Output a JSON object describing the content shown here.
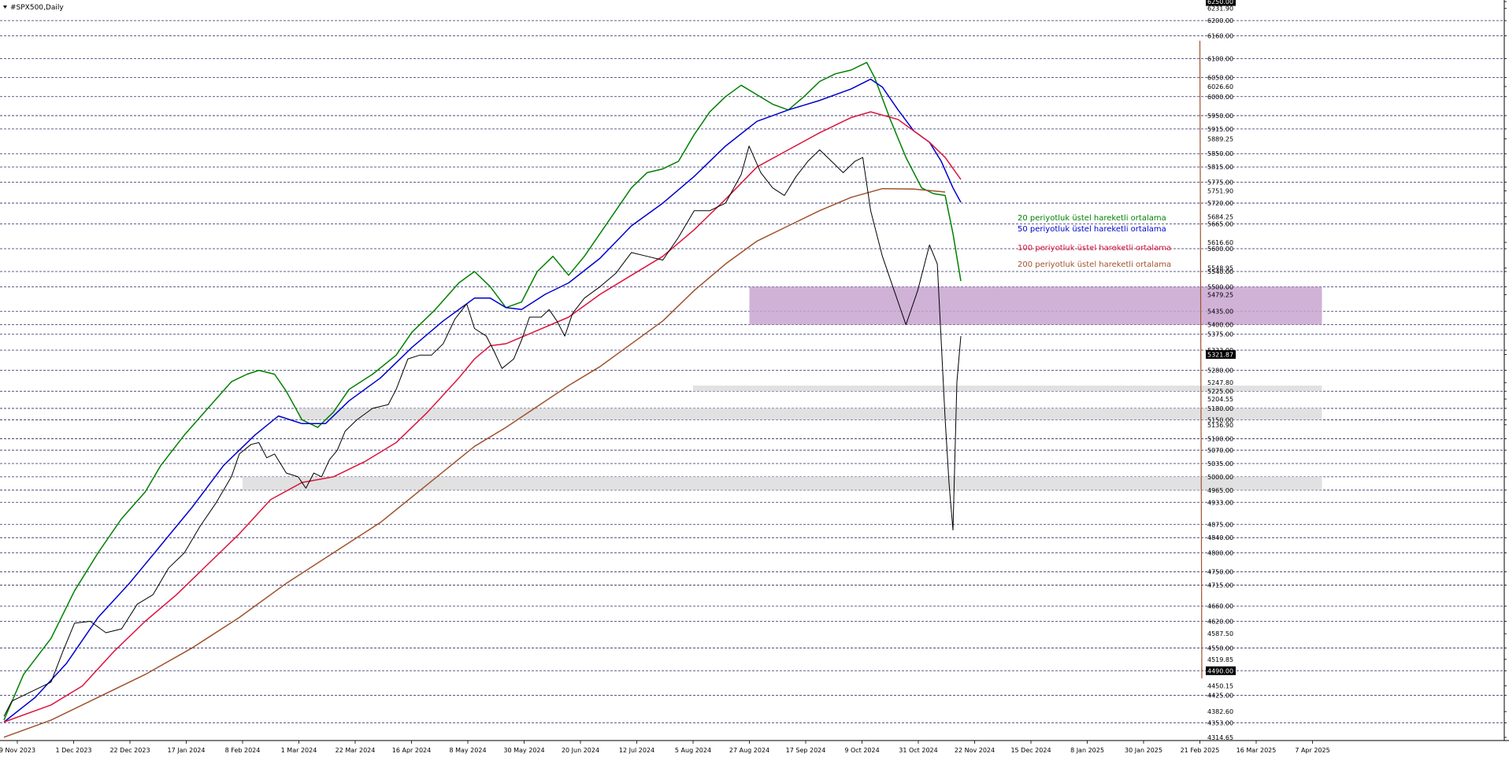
{
  "chart_title": "#SPX500,Daily",
  "chart_data": {
    "type": "line",
    "title": "#SPX500,Daily",
    "instrument": "#SPX500",
    "timeframe": "Daily",
    "xlabel": "",
    "ylabel": "",
    "ylim": [
      4314.65,
      6250.0
    ],
    "grid": true,
    "x_ticks": [
      "9 Nov 2023",
      "1 Dec 2023",
      "22 Dec 2023",
      "17 Jan 2024",
      "8 Feb 2024",
      "1 Mar 2024",
      "22 Mar 2024",
      "16 Apr 2024",
      "8 May 2024",
      "30 May 2024",
      "20 Jun 2024",
      "12 Jul 2024",
      "5 Aug 2024",
      "27 Aug 2024",
      "17 Sep 2024",
      "9 Oct 2024",
      "31 Oct 2024",
      "22 Nov 2024",
      "15 Dec 2024",
      "8 Jan 2025",
      "30 Jan 2025",
      "21 Feb 2025",
      "16 Mar 2025",
      "7 Apr 2025"
    ],
    "y_ticks": [
      6250.0,
      6231.9,
      6200.0,
      6160.0,
      6100.0,
      6050.0,
      6026.6,
      6000.0,
      5950.0,
      5915.0,
      5889.25,
      5850.0,
      5815.0,
      5775.0,
      5751.9,
      5720.0,
      5684.25,
      5665.0,
      5616.6,
      5600.0,
      5548.95,
      5540.0,
      5500.0,
      5479.25,
      5435.0,
      5400.0,
      5375.0,
      5333.0,
      5321.87,
      5280.0,
      5247.8,
      5225.0,
      5204.55,
      5180.0,
      5150.0,
      5136.9,
      5100.0,
      5070.0,
      5035.0,
      5000.0,
      4965.0,
      4933.0,
      4875.0,
      4840.0,
      4800.0,
      4750.0,
      4715.0,
      4660.0,
      4620.0,
      4587.5,
      4550.0,
      4519.85,
      4490.0,
      4450.15,
      4425.0,
      4382.6,
      4353.0,
      4314.65
    ],
    "dashed_levels": [
      6200,
      6160,
      6100,
      6050,
      6000,
      5950,
      5915,
      5850,
      5815,
      5775,
      5720,
      5665,
      5600,
      5540,
      5500,
      5435,
      5400,
      5375,
      5333,
      5280,
      5225,
      5180,
      5150,
      5100,
      5070,
      5035,
      5000,
      4965,
      4933,
      4875,
      4840,
      4800,
      4750,
      4715,
      4660,
      4620,
      4550,
      4490,
      4425,
      4353
    ],
    "highlighted_levels": [
      {
        "value": 6250.0,
        "color": "#000000"
      },
      {
        "value": 5321.87,
        "color": "#000000"
      },
      {
        "value": 4490.0,
        "color": "#000000"
      }
    ],
    "zones": [
      {
        "from": 5400,
        "to": 5500,
        "color": "#c8a5d0",
        "start": "27 Aug 2024",
        "end": "7 Apr 2025"
      },
      {
        "from": 5225,
        "to": 5240,
        "color": "#dcdcdc",
        "start": "5 Aug 2024",
        "end": "7 Apr 2025"
      },
      {
        "from": 5150,
        "to": 5180,
        "color": "#dcdcdc",
        "start": "1 Mar 2024",
        "end": "7 Apr 2025"
      },
      {
        "from": 4965,
        "to": 5000,
        "color": "#dcdcdc",
        "start": "8 Feb 2024",
        "end": "7 Apr 2025"
      }
    ],
    "trendline": {
      "color": "#a0522d",
      "start": {
        "date": "21 Feb 2025",
        "value": 6147
      },
      "end": {
        "date": "8 May 2025",
        "value": 4470
      }
    },
    "series": [
      {
        "name": "20 periyotluk üstel hareketli ortalama",
        "kind": "ema",
        "color": "#008000",
        "points": [
          [
            0,
            4360
          ],
          [
            25,
            4480
          ],
          [
            60,
            4575
          ],
          [
            90,
            4700
          ],
          [
            120,
            4800
          ],
          [
            150,
            4890
          ],
          [
            180,
            4960
          ],
          [
            200,
            5030
          ],
          [
            230,
            5110
          ],
          [
            260,
            5180
          ],
          [
            290,
            5250
          ],
          [
            310,
            5270
          ],
          [
            325,
            5280
          ],
          [
            345,
            5270
          ],
          [
            360,
            5225
          ],
          [
            380,
            5150
          ],
          [
            400,
            5130
          ],
          [
            420,
            5170
          ],
          [
            440,
            5230
          ],
          [
            470,
            5270
          ],
          [
            500,
            5320
          ],
          [
            520,
            5380
          ],
          [
            550,
            5440
          ],
          [
            580,
            5510
          ],
          [
            600,
            5540
          ],
          [
            620,
            5500
          ],
          [
            640,
            5445
          ],
          [
            660,
            5460
          ],
          [
            680,
            5540
          ],
          [
            700,
            5580
          ],
          [
            720,
            5530
          ],
          [
            740,
            5580
          ],
          [
            760,
            5640
          ],
          [
            780,
            5700
          ],
          [
            800,
            5760
          ],
          [
            820,
            5800
          ],
          [
            840,
            5810
          ],
          [
            860,
            5830
          ],
          [
            880,
            5900
          ],
          [
            900,
            5960
          ],
          [
            920,
            6000
          ],
          [
            940,
            6030
          ],
          [
            960,
            6005
          ],
          [
            980,
            5980
          ],
          [
            1000,
            5965
          ],
          [
            1020,
            6000
          ],
          [
            1040,
            6040
          ],
          [
            1060,
            6060
          ],
          [
            1080,
            6070
          ],
          [
            1100,
            6090
          ],
          [
            1110,
            6050
          ],
          [
            1130,
            5940
          ],
          [
            1150,
            5840
          ],
          [
            1170,
            5760
          ],
          [
            1185,
            5745
          ],
          [
            1200,
            5740
          ],
          [
            1210,
            5640
          ],
          [
            1220,
            5515
          ]
        ]
      },
      {
        "name": "50 periyotluk üstel hareketli ortalama",
        "kind": "ema",
        "color": "#0000cd",
        "points": [
          [
            0,
            4355
          ],
          [
            40,
            4420
          ],
          [
            80,
            4510
          ],
          [
            120,
            4630
          ],
          [
            160,
            4720
          ],
          [
            200,
            4820
          ],
          [
            240,
            4920
          ],
          [
            280,
            5030
          ],
          [
            320,
            5110
          ],
          [
            350,
            5160
          ],
          [
            380,
            5140
          ],
          [
            410,
            5140
          ],
          [
            440,
            5200
          ],
          [
            480,
            5260
          ],
          [
            520,
            5340
          ],
          [
            560,
            5410
          ],
          [
            600,
            5470
          ],
          [
            620,
            5470
          ],
          [
            640,
            5445
          ],
          [
            660,
            5440
          ],
          [
            690,
            5480
          ],
          [
            720,
            5510
          ],
          [
            760,
            5575
          ],
          [
            800,
            5660
          ],
          [
            840,
            5720
          ],
          [
            880,
            5790
          ],
          [
            920,
            5870
          ],
          [
            960,
            5935
          ],
          [
            1000,
            5965
          ],
          [
            1040,
            5990
          ],
          [
            1080,
            6020
          ],
          [
            1105,
            6046
          ],
          [
            1120,
            6025
          ],
          [
            1140,
            5965
          ],
          [
            1160,
            5910
          ],
          [
            1180,
            5880
          ],
          [
            1195,
            5830
          ],
          [
            1210,
            5760
          ],
          [
            1220,
            5722
          ]
        ]
      },
      {
        "name": "100 periyotluk üstel hareketli ortalama",
        "kind": "ema",
        "color": "#dc143c",
        "points": [
          [
            0,
            4355
          ],
          [
            60,
            4400
          ],
          [
            100,
            4450
          ],
          [
            140,
            4540
          ],
          [
            180,
            4620
          ],
          [
            220,
            4690
          ],
          [
            260,
            4770
          ],
          [
            300,
            4850
          ],
          [
            340,
            4940
          ],
          [
            380,
            4985
          ],
          [
            420,
            5000
          ],
          [
            460,
            5040
          ],
          [
            500,
            5090
          ],
          [
            540,
            5170
          ],
          [
            580,
            5260
          ],
          [
            600,
            5310
          ],
          [
            620,
            5345
          ],
          [
            640,
            5350
          ],
          [
            680,
            5385
          ],
          [
            720,
            5420
          ],
          [
            760,
            5480
          ],
          [
            800,
            5530
          ],
          [
            840,
            5580
          ],
          [
            880,
            5650
          ],
          [
            920,
            5730
          ],
          [
            960,
            5815
          ],
          [
            1000,
            5860
          ],
          [
            1040,
            5905
          ],
          [
            1080,
            5945
          ],
          [
            1105,
            5960
          ],
          [
            1140,
            5940
          ],
          [
            1160,
            5910
          ],
          [
            1180,
            5880
          ],
          [
            1200,
            5840
          ],
          [
            1220,
            5782
          ]
        ]
      },
      {
        "name": "200 periyotluk üstel hareketli ortalama",
        "kind": "ema",
        "color": "#a0522d",
        "points": [
          [
            0,
            4315
          ],
          [
            60,
            4360
          ],
          [
            120,
            4420
          ],
          [
            180,
            4480
          ],
          [
            240,
            4550
          ],
          [
            300,
            4630
          ],
          [
            360,
            4720
          ],
          [
            420,
            4800
          ],
          [
            480,
            4880
          ],
          [
            540,
            4980
          ],
          [
            600,
            5080
          ],
          [
            640,
            5130
          ],
          [
            680,
            5185
          ],
          [
            720,
            5240
          ],
          [
            760,
            5290
          ],
          [
            800,
            5350
          ],
          [
            840,
            5410
          ],
          [
            880,
            5490
          ],
          [
            920,
            5560
          ],
          [
            960,
            5620
          ],
          [
            1000,
            5660
          ],
          [
            1040,
            5700
          ],
          [
            1080,
            5735
          ],
          [
            1120,
            5758
          ],
          [
            1160,
            5757
          ],
          [
            1200,
            5749
          ]
        ]
      },
      {
        "name": "SPX500 daily price",
        "kind": "price",
        "color": "#000000",
        "points": [
          [
            0,
            4370
          ],
          [
            10,
            4410
          ],
          [
            20,
            4420
          ],
          [
            40,
            4440
          ],
          [
            60,
            4460
          ],
          [
            75,
            4540
          ],
          [
            90,
            4615
          ],
          [
            110,
            4620
          ],
          [
            130,
            4590
          ],
          [
            150,
            4600
          ],
          [
            170,
            4665
          ],
          [
            190,
            4690
          ],
          [
            210,
            4760
          ],
          [
            230,
            4800
          ],
          [
            250,
            4870
          ],
          [
            270,
            4930
          ],
          [
            290,
            5000
          ],
          [
            300,
            5060
          ],
          [
            315,
            5085
          ],
          [
            325,
            5090
          ],
          [
            335,
            5050
          ],
          [
            345,
            5060
          ],
          [
            360,
            5010
          ],
          [
            375,
            5000
          ],
          [
            385,
            4970
          ],
          [
            395,
            5010
          ],
          [
            405,
            5000
          ],
          [
            415,
            5045
          ],
          [
            425,
            5070
          ],
          [
            435,
            5120
          ],
          [
            450,
            5150
          ],
          [
            470,
            5180
          ],
          [
            490,
            5190
          ],
          [
            500,
            5230
          ],
          [
            515,
            5310
          ],
          [
            530,
            5320
          ],
          [
            545,
            5320
          ],
          [
            560,
            5350
          ],
          [
            575,
            5415
          ],
          [
            590,
            5455
          ],
          [
            600,
            5390
          ],
          [
            615,
            5370
          ],
          [
            625,
            5330
          ],
          [
            635,
            5285
          ],
          [
            650,
            5310
          ],
          [
            660,
            5360
          ],
          [
            670,
            5420
          ],
          [
            685,
            5420
          ],
          [
            695,
            5440
          ],
          [
            705,
            5410
          ],
          [
            715,
            5370
          ],
          [
            725,
            5430
          ],
          [
            740,
            5470
          ],
          [
            760,
            5500
          ],
          [
            780,
            5535
          ],
          [
            800,
            5590
          ],
          [
            820,
            5580
          ],
          [
            840,
            5570
          ],
          [
            860,
            5630
          ],
          [
            880,
            5700
          ],
          [
            900,
            5700
          ],
          [
            920,
            5720
          ],
          [
            940,
            5795
          ],
          [
            950,
            5870
          ],
          [
            965,
            5800
          ],
          [
            980,
            5760
          ],
          [
            995,
            5740
          ],
          [
            1010,
            5790
          ],
          [
            1025,
            5830
          ],
          [
            1040,
            5860
          ],
          [
            1055,
            5830
          ],
          [
            1070,
            5800
          ],
          [
            1085,
            5830
          ],
          [
            1095,
            5840
          ],
          [
            1105,
            5700
          ],
          [
            1120,
            5580
          ],
          [
            1135,
            5490
          ],
          [
            1150,
            5400
          ],
          [
            1165,
            5490
          ],
          [
            1180,
            5610
          ],
          [
            1190,
            5560
          ],
          [
            1200,
            5150
          ],
          [
            1205,
            4980
          ],
          [
            1210,
            4860
          ],
          [
            1215,
            5250
          ],
          [
            1220,
            5370
          ]
        ]
      }
    ]
  },
  "legend": [
    {
      "label": "20 periyotluk üstel hareketli ortalama",
      "color": "#008000"
    },
    {
      "label": "50 periyotluk üstel hareketli ortalama",
      "color": "#0000cd"
    },
    {
      "label": "100 periyotluk üstel hareketli ortalama",
      "color": "#dc143c"
    },
    {
      "label": "200 periyotluk üstel hareketli ortalama",
      "color": "#a0522d"
    }
  ]
}
